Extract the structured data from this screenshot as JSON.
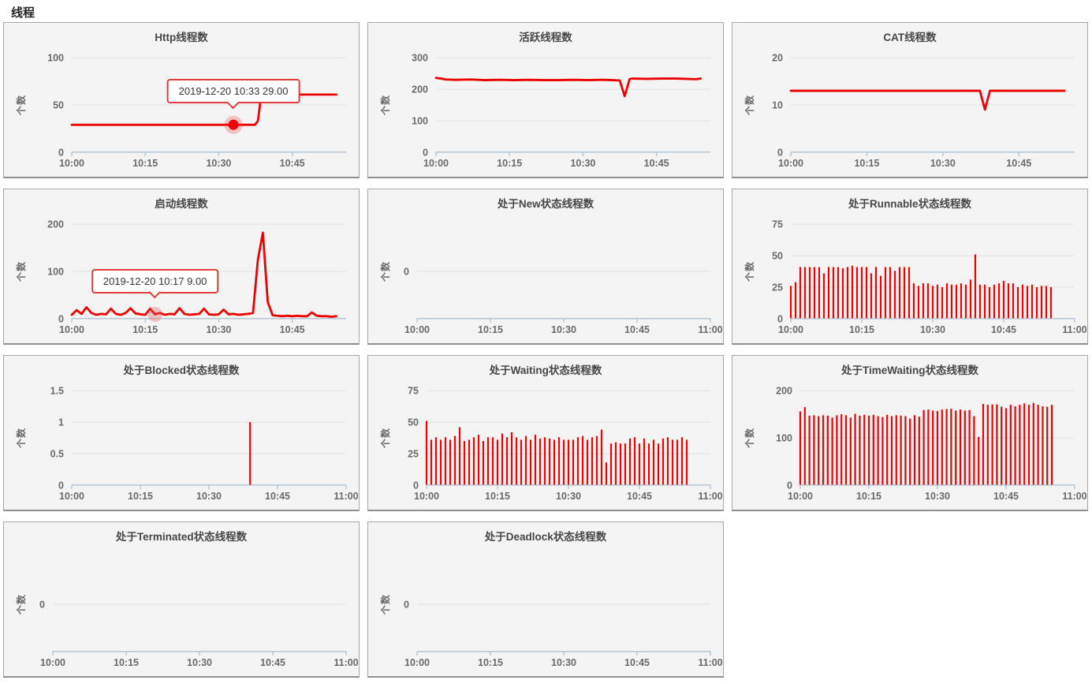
{
  "page": {
    "title": "线程"
  },
  "ui": {
    "colors": {
      "series": "#ec0000",
      "axis": "#abc2d4",
      "grid": "#e2e2e2",
      "tooltip_border": "#e23c3c",
      "marker_halo": "rgba(236,60,60,0.28)",
      "panel_bg": "#f4f4f4"
    }
  },
  "chart_data": [
    {
      "id": "http-thread-count",
      "type": "line",
      "title": "Http线程数",
      "ylabel": "个数",
      "yticks": [
        0,
        50,
        100
      ],
      "ymax": 100,
      "xmax_minutes": 56,
      "xticks": [
        {
          "minute": 0,
          "label": "10:00"
        },
        {
          "minute": 15,
          "label": "10:15"
        },
        {
          "minute": 30,
          "label": "10:30"
        },
        {
          "minute": 45,
          "label": "10:45"
        }
      ],
      "line_points": [
        [
          0,
          29
        ],
        [
          37.4,
          29
        ],
        [
          38.0,
          33
        ],
        [
          38.6,
          58
        ],
        [
          39,
          61
        ],
        [
          54,
          61
        ]
      ],
      "marker": {
        "minute": 33,
        "value": 29,
        "style": "active"
      },
      "tooltip": {
        "text": "2019-12-20 10:33 29.00",
        "anchor_minute": 33,
        "anchor_value": 29
      }
    },
    {
      "id": "active-thread-count",
      "type": "line",
      "title": "活跃线程数",
      "ylabel": "个数",
      "yticks": [
        0,
        100,
        200,
        300
      ],
      "ymax": 300,
      "xmax_minutes": 56,
      "xticks": [
        {
          "minute": 0,
          "label": "10:00"
        },
        {
          "minute": 15,
          "label": "10:15"
        },
        {
          "minute": 30,
          "label": "10:30"
        },
        {
          "minute": 45,
          "label": "10:45"
        }
      ],
      "line_points": [
        [
          0,
          236
        ],
        [
          1,
          234
        ],
        [
          2,
          231
        ],
        [
          4,
          230
        ],
        [
          7,
          231
        ],
        [
          10,
          229
        ],
        [
          13,
          230
        ],
        [
          16,
          229
        ],
        [
          19,
          230
        ],
        [
          22,
          229
        ],
        [
          25,
          229
        ],
        [
          28,
          230
        ],
        [
          31,
          229
        ],
        [
          34,
          230
        ],
        [
          36,
          229
        ],
        [
          37.5,
          228
        ],
        [
          38.5,
          178
        ],
        [
          39.5,
          232
        ],
        [
          40,
          234
        ],
        [
          43,
          233
        ],
        [
          46,
          234
        ],
        [
          49,
          234
        ],
        [
          51,
          233
        ],
        [
          53,
          232
        ],
        [
          54,
          234
        ]
      ]
    },
    {
      "id": "cat-thread-count",
      "type": "line",
      "title": "CAT线程数",
      "ylabel": "个数",
      "yticks": [
        0,
        10,
        20
      ],
      "ymax": 20,
      "xmax_minutes": 56,
      "xticks": [
        {
          "minute": 0,
          "label": "10:00"
        },
        {
          "minute": 15,
          "label": "10:15"
        },
        {
          "minute": 30,
          "label": "10:30"
        },
        {
          "minute": 45,
          "label": "10:45"
        }
      ],
      "line_points": [
        [
          0,
          13
        ],
        [
          37.3,
          13
        ],
        [
          38.3,
          9
        ],
        [
          39.3,
          13
        ],
        [
          54,
          13
        ]
      ]
    },
    {
      "id": "started-thread-count",
      "type": "line",
      "title": "启动线程数",
      "ylabel": "个数",
      "yticks": [
        0,
        100,
        200
      ],
      "ymax": 200,
      "xmax_minutes": 56,
      "xticks": [
        {
          "minute": 0,
          "label": "10:00"
        },
        {
          "minute": 15,
          "label": "10:15"
        },
        {
          "minute": 30,
          "label": "10:30"
        },
        {
          "minute": 45,
          "label": "10:45"
        }
      ],
      "line_values": [
        8,
        18,
        10,
        24,
        12,
        8,
        10,
        9,
        21,
        10,
        8,
        12,
        22,
        11,
        9,
        8,
        21,
        9,
        12,
        8,
        10,
        9,
        22,
        10,
        8,
        9,
        10,
        21,
        9,
        8,
        9,
        19,
        9,
        10,
        8,
        9,
        10,
        12,
        125,
        182,
        35,
        7,
        6,
        5,
        6,
        5,
        6,
        5,
        5,
        13,
        6,
        5,
        5,
        4,
        5
      ],
      "marker": {
        "minute": 17,
        "value": 9,
        "style": "faded"
      },
      "tooltip": {
        "text": "2019-12-20 10:17 9.00",
        "anchor_minute": 17,
        "anchor_value": 9
      }
    },
    {
      "id": "new-state-thread-count",
      "type": "empty",
      "title": "处于New状态线程数",
      "ylabel": "个数",
      "yticks": [
        0
      ],
      "ymax": null,
      "xmax_minutes": 60,
      "xticks": [
        {
          "minute": 0,
          "label": "10:00"
        },
        {
          "minute": 15,
          "label": "10:15"
        },
        {
          "minute": 30,
          "label": "10:30"
        },
        {
          "minute": 45,
          "label": "10:45"
        },
        {
          "minute": 60,
          "label": "11:00"
        }
      ]
    },
    {
      "id": "runnable-state-thread-count",
      "type": "bars",
      "title": "处于Runnable状态线程数",
      "ylabel": "个数",
      "yticks": [
        0,
        25,
        50,
        75
      ],
      "ymax": 75,
      "xmax_minutes": 60,
      "xticks": [
        {
          "minute": 0,
          "label": "10:00"
        },
        {
          "minute": 15,
          "label": "10:15"
        },
        {
          "minute": 30,
          "label": "10:30"
        },
        {
          "minute": 45,
          "label": "10:45"
        },
        {
          "minute": 60,
          "label": "11:00"
        }
      ],
      "bar_values": [
        26,
        29,
        41,
        41,
        41,
        41,
        41,
        36,
        41,
        41,
        41,
        40,
        41,
        42,
        41,
        41,
        41,
        36,
        41,
        34,
        41,
        41,
        38,
        41,
        41,
        41,
        28,
        26,
        28,
        28,
        26,
        27,
        25,
        28,
        27,
        27,
        28,
        27,
        31,
        51,
        27,
        27,
        25,
        27,
        28,
        30,
        28,
        28,
        25,
        27,
        26,
        27,
        25,
        26,
        26,
        25
      ]
    },
    {
      "id": "blocked-state-thread-count",
      "type": "bars",
      "title": "处于Blocked状态线程数",
      "ylabel": "个数",
      "yticks": [
        0,
        0.5,
        1,
        1.5
      ],
      "ymax": 1.5,
      "xmax_minutes": 60,
      "xticks": [
        {
          "minute": 0,
          "label": "10:00"
        },
        {
          "minute": 15,
          "label": "10:15"
        },
        {
          "minute": 30,
          "label": "10:30"
        },
        {
          "minute": 45,
          "label": "10:45"
        },
        {
          "minute": 60,
          "label": "11:00"
        }
      ],
      "bar_values": [
        0,
        0,
        0,
        0,
        0,
        0,
        0,
        0,
        0,
        0,
        0,
        0,
        0,
        0,
        0,
        0,
        0,
        0,
        0,
        0,
        0,
        0,
        0,
        0,
        0,
        0,
        0,
        0,
        0,
        0,
        0,
        0,
        0,
        0,
        0,
        0,
        0,
        0,
        0,
        1,
        0,
        0,
        0,
        0,
        0,
        0,
        0,
        0,
        0,
        0,
        0,
        0,
        0,
        0,
        0,
        0
      ]
    },
    {
      "id": "waiting-state-thread-count",
      "type": "bars",
      "title": "处于Waiting状态线程数",
      "ylabel": "个数",
      "yticks": [
        0,
        25,
        50,
        75
      ],
      "ymax": 75,
      "xmax_minutes": 60,
      "xticks": [
        {
          "minute": 0,
          "label": "10:00"
        },
        {
          "minute": 15,
          "label": "10:15"
        },
        {
          "minute": 30,
          "label": "10:30"
        },
        {
          "minute": 45,
          "label": "10:45"
        },
        {
          "minute": 60,
          "label": "11:00"
        }
      ],
      "bar_values": [
        51,
        36,
        38,
        36,
        38,
        36,
        39,
        46,
        35,
        36,
        38,
        40,
        35,
        38,
        38,
        36,
        41,
        38,
        42,
        38,
        36,
        39,
        36,
        40,
        37,
        38,
        37,
        36,
        38,
        36,
        36,
        36,
        38,
        39,
        36,
        38,
        39,
        44,
        18,
        33,
        34,
        33,
        33,
        37,
        38,
        33,
        37,
        33,
        36,
        33,
        37,
        38,
        36,
        36,
        38,
        36
      ]
    },
    {
      "id": "timewaiting-state-thread-count",
      "type": "bars",
      "title": "处于TimeWaiting状态线程数",
      "ylabel": "个数",
      "yticks": [
        0,
        100,
        200
      ],
      "ymax": 200,
      "xmax_minutes": 60,
      "xticks": [
        {
          "minute": 0,
          "label": "10:00"
        },
        {
          "minute": 15,
          "label": "10:15"
        },
        {
          "minute": 30,
          "label": "10:30"
        },
        {
          "minute": 45,
          "label": "10:45"
        },
        {
          "minute": 60,
          "label": "11:00"
        }
      ],
      "bar_values": [
        156,
        165,
        147,
        148,
        146,
        148,
        147,
        143,
        148,
        150,
        148,
        143,
        151,
        147,
        149,
        147,
        149,
        146,
        144,
        149,
        146,
        148,
        147,
        146,
        141,
        148,
        145,
        159,
        160,
        158,
        157,
        160,
        161,
        162,
        158,
        160,
        158,
        159,
        146,
        102,
        172,
        170,
        171,
        171,
        166,
        163,
        170,
        167,
        170,
        173,
        170,
        174,
        170,
        167,
        166,
        170
      ]
    },
    {
      "id": "terminated-state-thread-count",
      "type": "empty",
      "title": "处于Terminated状态线程数",
      "ylabel": "个数",
      "yticks": [
        0
      ],
      "ymax": null,
      "xmax_minutes": 60,
      "xticks": [
        {
          "minute": 0,
          "label": "10:00"
        },
        {
          "minute": 15,
          "label": "10:15"
        },
        {
          "minute": 30,
          "label": "10:30"
        },
        {
          "minute": 45,
          "label": "10:45"
        },
        {
          "minute": 60,
          "label": "11:00"
        }
      ]
    },
    {
      "id": "deadlock-state-thread-count",
      "type": "empty",
      "title": "处于Deadlock状态线程数",
      "ylabel": "个数",
      "yticks": [
        0
      ],
      "ymax": null,
      "xmax_minutes": 60,
      "xticks": [
        {
          "minute": 0,
          "label": "10:00"
        },
        {
          "minute": 15,
          "label": "10:15"
        },
        {
          "minute": 30,
          "label": "10:30"
        },
        {
          "minute": 45,
          "label": "10:45"
        },
        {
          "minute": 60,
          "label": "11:00"
        }
      ]
    }
  ]
}
